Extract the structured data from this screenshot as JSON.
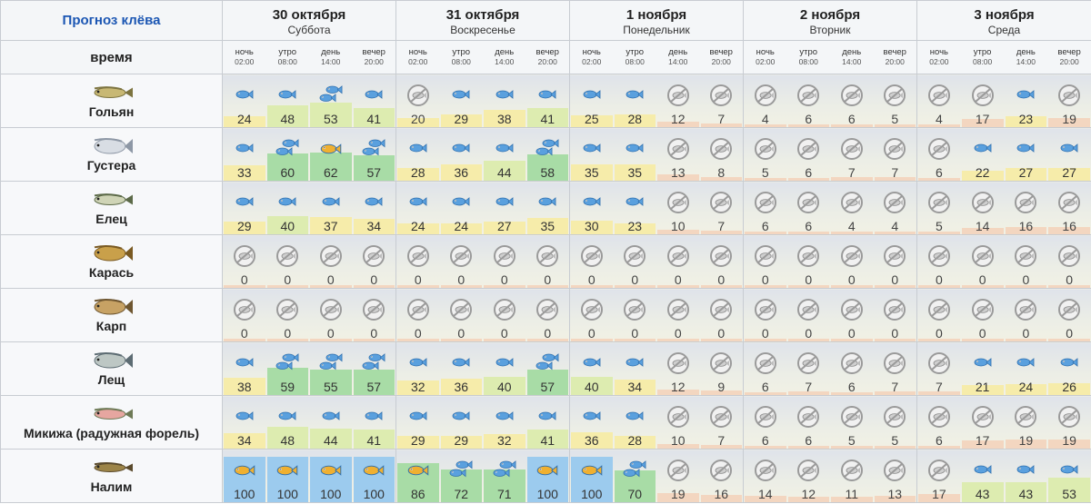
{
  "header": {
    "title": "Прогноз клёва",
    "time_label": "время"
  },
  "periods": [
    {
      "name": "ночь",
      "time": "02:00"
    },
    {
      "name": "утро",
      "time": "08:00"
    },
    {
      "name": "день",
      "time": "14:00"
    },
    {
      "name": "вечер",
      "time": "20:00"
    }
  ],
  "days": [
    {
      "date": "30 октября",
      "weekday": "Суббота"
    },
    {
      "date": "31 октября",
      "weekday": "Воскресенье"
    },
    {
      "date": "1 ноября",
      "weekday": "Понедельник"
    },
    {
      "date": "2 ноября",
      "weekday": "Вторник"
    },
    {
      "date": "3 ноября",
      "weekday": "Среда"
    }
  ],
  "colors": {
    "low": "#f3d6c0",
    "mid": "#f6ecaa",
    "good": "#ddecb0",
    "high": "#a8dca6",
    "top": "#9ccbee",
    "fish_icon": "#5aa0de",
    "fish_icon_gold": "#f0b030",
    "no_bite": "#9a9a9a"
  },
  "icon_legend": {
    "none": "no-bite-icon",
    "fish": "fish-bite-icon",
    "gold": "gold-fish-icon"
  },
  "fish": [
    {
      "name": "Гольян",
      "icon": "minnow-icon",
      "values": [
        24,
        48,
        53,
        41,
        20,
        29,
        38,
        41,
        25,
        28,
        12,
        7,
        4,
        6,
        6,
        5,
        4,
        17,
        23,
        19
      ],
      "bite": [
        "f",
        "f",
        "f2",
        "f",
        "n",
        "f",
        "f",
        "f",
        "f",
        "f",
        "n",
        "n",
        "n",
        "n",
        "n",
        "n",
        "n",
        "n",
        "f",
        "n"
      ]
    },
    {
      "name": "Густера",
      "icon": "white-bream-icon",
      "values": [
        33,
        60,
        62,
        57,
        28,
        36,
        44,
        58,
        35,
        35,
        13,
        8,
        5,
        6,
        7,
        7,
        6,
        22,
        27,
        27
      ],
      "bite": [
        "f",
        "f2",
        "g",
        "f2",
        "f",
        "f",
        "f",
        "f2",
        "f",
        "f",
        "n",
        "n",
        "n",
        "n",
        "n",
        "n",
        "n",
        "f",
        "f",
        "f"
      ]
    },
    {
      "name": "Елец",
      "icon": "dace-icon",
      "values": [
        29,
        40,
        37,
        34,
        24,
        24,
        27,
        35,
        30,
        23,
        10,
        7,
        6,
        6,
        4,
        4,
        5,
        14,
        16,
        16
      ],
      "bite": [
        "f",
        "f",
        "f",
        "f",
        "f",
        "f",
        "f",
        "f",
        "f",
        "f",
        "n",
        "n",
        "n",
        "n",
        "n",
        "n",
        "n",
        "n",
        "n",
        "n"
      ]
    },
    {
      "name": "Карась",
      "icon": "crucian-carp-icon",
      "values": [
        0,
        0,
        0,
        0,
        0,
        0,
        0,
        0,
        0,
        0,
        0,
        0,
        0,
        0,
        0,
        0,
        0,
        0,
        0,
        0
      ],
      "bite": [
        "n",
        "n",
        "n",
        "n",
        "n",
        "n",
        "n",
        "n",
        "n",
        "n",
        "n",
        "n",
        "n",
        "n",
        "n",
        "n",
        "n",
        "n",
        "n",
        "n"
      ]
    },
    {
      "name": "Карп",
      "icon": "carp-icon",
      "values": [
        0,
        0,
        0,
        0,
        0,
        0,
        0,
        0,
        0,
        0,
        0,
        0,
        0,
        0,
        0,
        0,
        0,
        0,
        0,
        0
      ],
      "bite": [
        "n",
        "n",
        "n",
        "n",
        "n",
        "n",
        "n",
        "n",
        "n",
        "n",
        "n",
        "n",
        "n",
        "n",
        "n",
        "n",
        "n",
        "n",
        "n",
        "n"
      ]
    },
    {
      "name": "Лещ",
      "icon": "bream-icon",
      "values": [
        38,
        59,
        55,
        57,
        32,
        36,
        40,
        57,
        40,
        34,
        12,
        9,
        6,
        7,
        6,
        7,
        7,
        21,
        24,
        26
      ],
      "bite": [
        "f",
        "f2",
        "f2",
        "f2",
        "f",
        "f",
        "f",
        "f2",
        "f",
        "f",
        "n",
        "n",
        "n",
        "n",
        "n",
        "n",
        "n",
        "f",
        "f",
        "f"
      ]
    },
    {
      "name": "Микижа (радужная форель)",
      "icon": "rainbow-trout-icon",
      "values": [
        34,
        48,
        44,
        41,
        29,
        29,
        32,
        41,
        36,
        28,
        10,
        7,
        6,
        6,
        5,
        5,
        6,
        17,
        19,
        19
      ],
      "bite": [
        "f",
        "f",
        "f",
        "f",
        "f",
        "f",
        "f",
        "f",
        "f",
        "f",
        "n",
        "n",
        "n",
        "n",
        "n",
        "n",
        "n",
        "n",
        "n",
        "n"
      ]
    },
    {
      "name": "Налим",
      "icon": "burbot-icon",
      "values": [
        100,
        100,
        100,
        100,
        86,
        72,
        71,
        100,
        100,
        70,
        19,
        16,
        14,
        12,
        11,
        13,
        17,
        43,
        43,
        53
      ],
      "bite": [
        "g",
        "g",
        "g",
        "g",
        "g",
        "f2",
        "f2",
        "g",
        "g",
        "f2",
        "n",
        "n",
        "n",
        "n",
        "n",
        "n",
        "n",
        "f",
        "f",
        "f"
      ]
    }
  ]
}
